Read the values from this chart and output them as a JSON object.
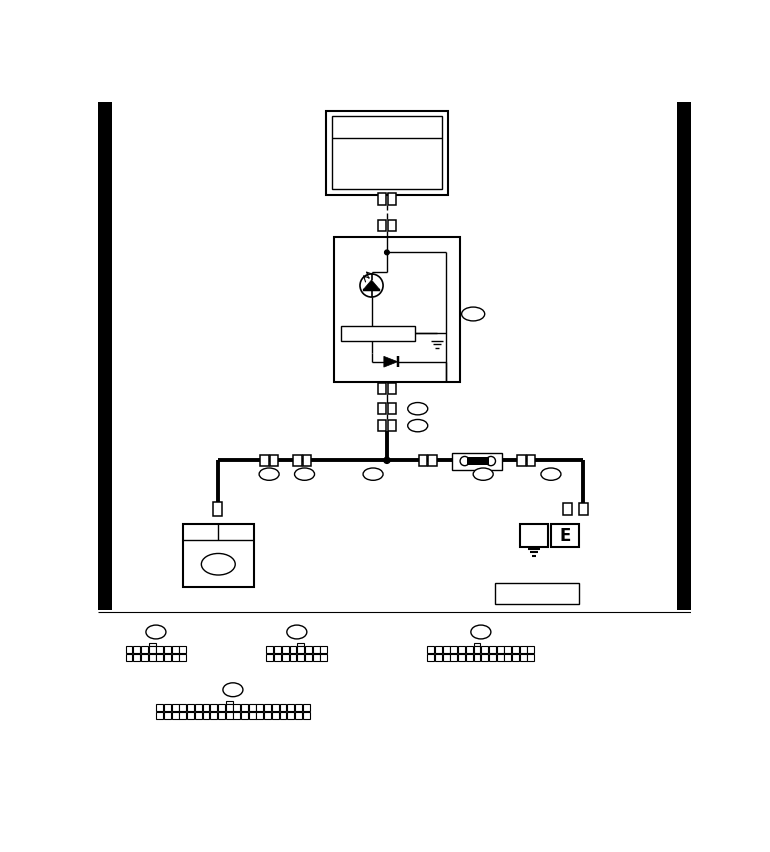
{
  "bg_color": "#ffffff",
  "line_color": "#000000",
  "thick_lw": 2.8,
  "thin_lw": 1.0,
  "med_lw": 1.5
}
